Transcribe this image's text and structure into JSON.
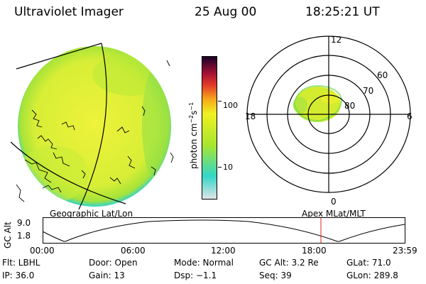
{
  "header": {
    "title": "Ultraviolet Imager",
    "date": "25 Aug 00",
    "time": "18:25:21 UT"
  },
  "colorbar": {
    "label_main": "photon cm",
    "label_sup1": "−2",
    "label_s": "s",
    "label_sup2": "−1",
    "ticks": [
      "100",
      "10"
    ],
    "scale": "log",
    "colors": [
      "#dfe4e6",
      "#33d6c8",
      "#a8e62e",
      "#f0f022",
      "#f7a81a",
      "#e43a2a",
      "#a61233",
      "#1c0028"
    ]
  },
  "polar_plot": {
    "mlt_labels": [
      "12",
      "18",
      "6",
      "0"
    ],
    "mlat_labels": [
      "60",
      "70",
      "80"
    ]
  },
  "panel_labels": {
    "left": "Geographic Lat/Lon",
    "right": "Apex MLat/MLT"
  },
  "altitude_strip": {
    "ylabel": "GC Alt",
    "yticks": [
      "9.0",
      "1.8"
    ],
    "xticks": [
      "00:00",
      "06:00",
      "12:00",
      "18:00",
      "23:59"
    ],
    "marker_time": "18:25",
    "marker_color": "#e02020"
  },
  "footer": {
    "flt": "Flt: LBHL",
    "ip": "IP: 36.0",
    "door": "Door: Open",
    "gain": "Gain: 13",
    "mode": "Mode: Normal",
    "dsp": "Dsp:    −1.1",
    "gcalt": "GC Alt: 3.2 Re",
    "seq": "Seq: 39",
    "glat": "GLat: 71.0",
    "glon": "GLon: 289.8"
  }
}
